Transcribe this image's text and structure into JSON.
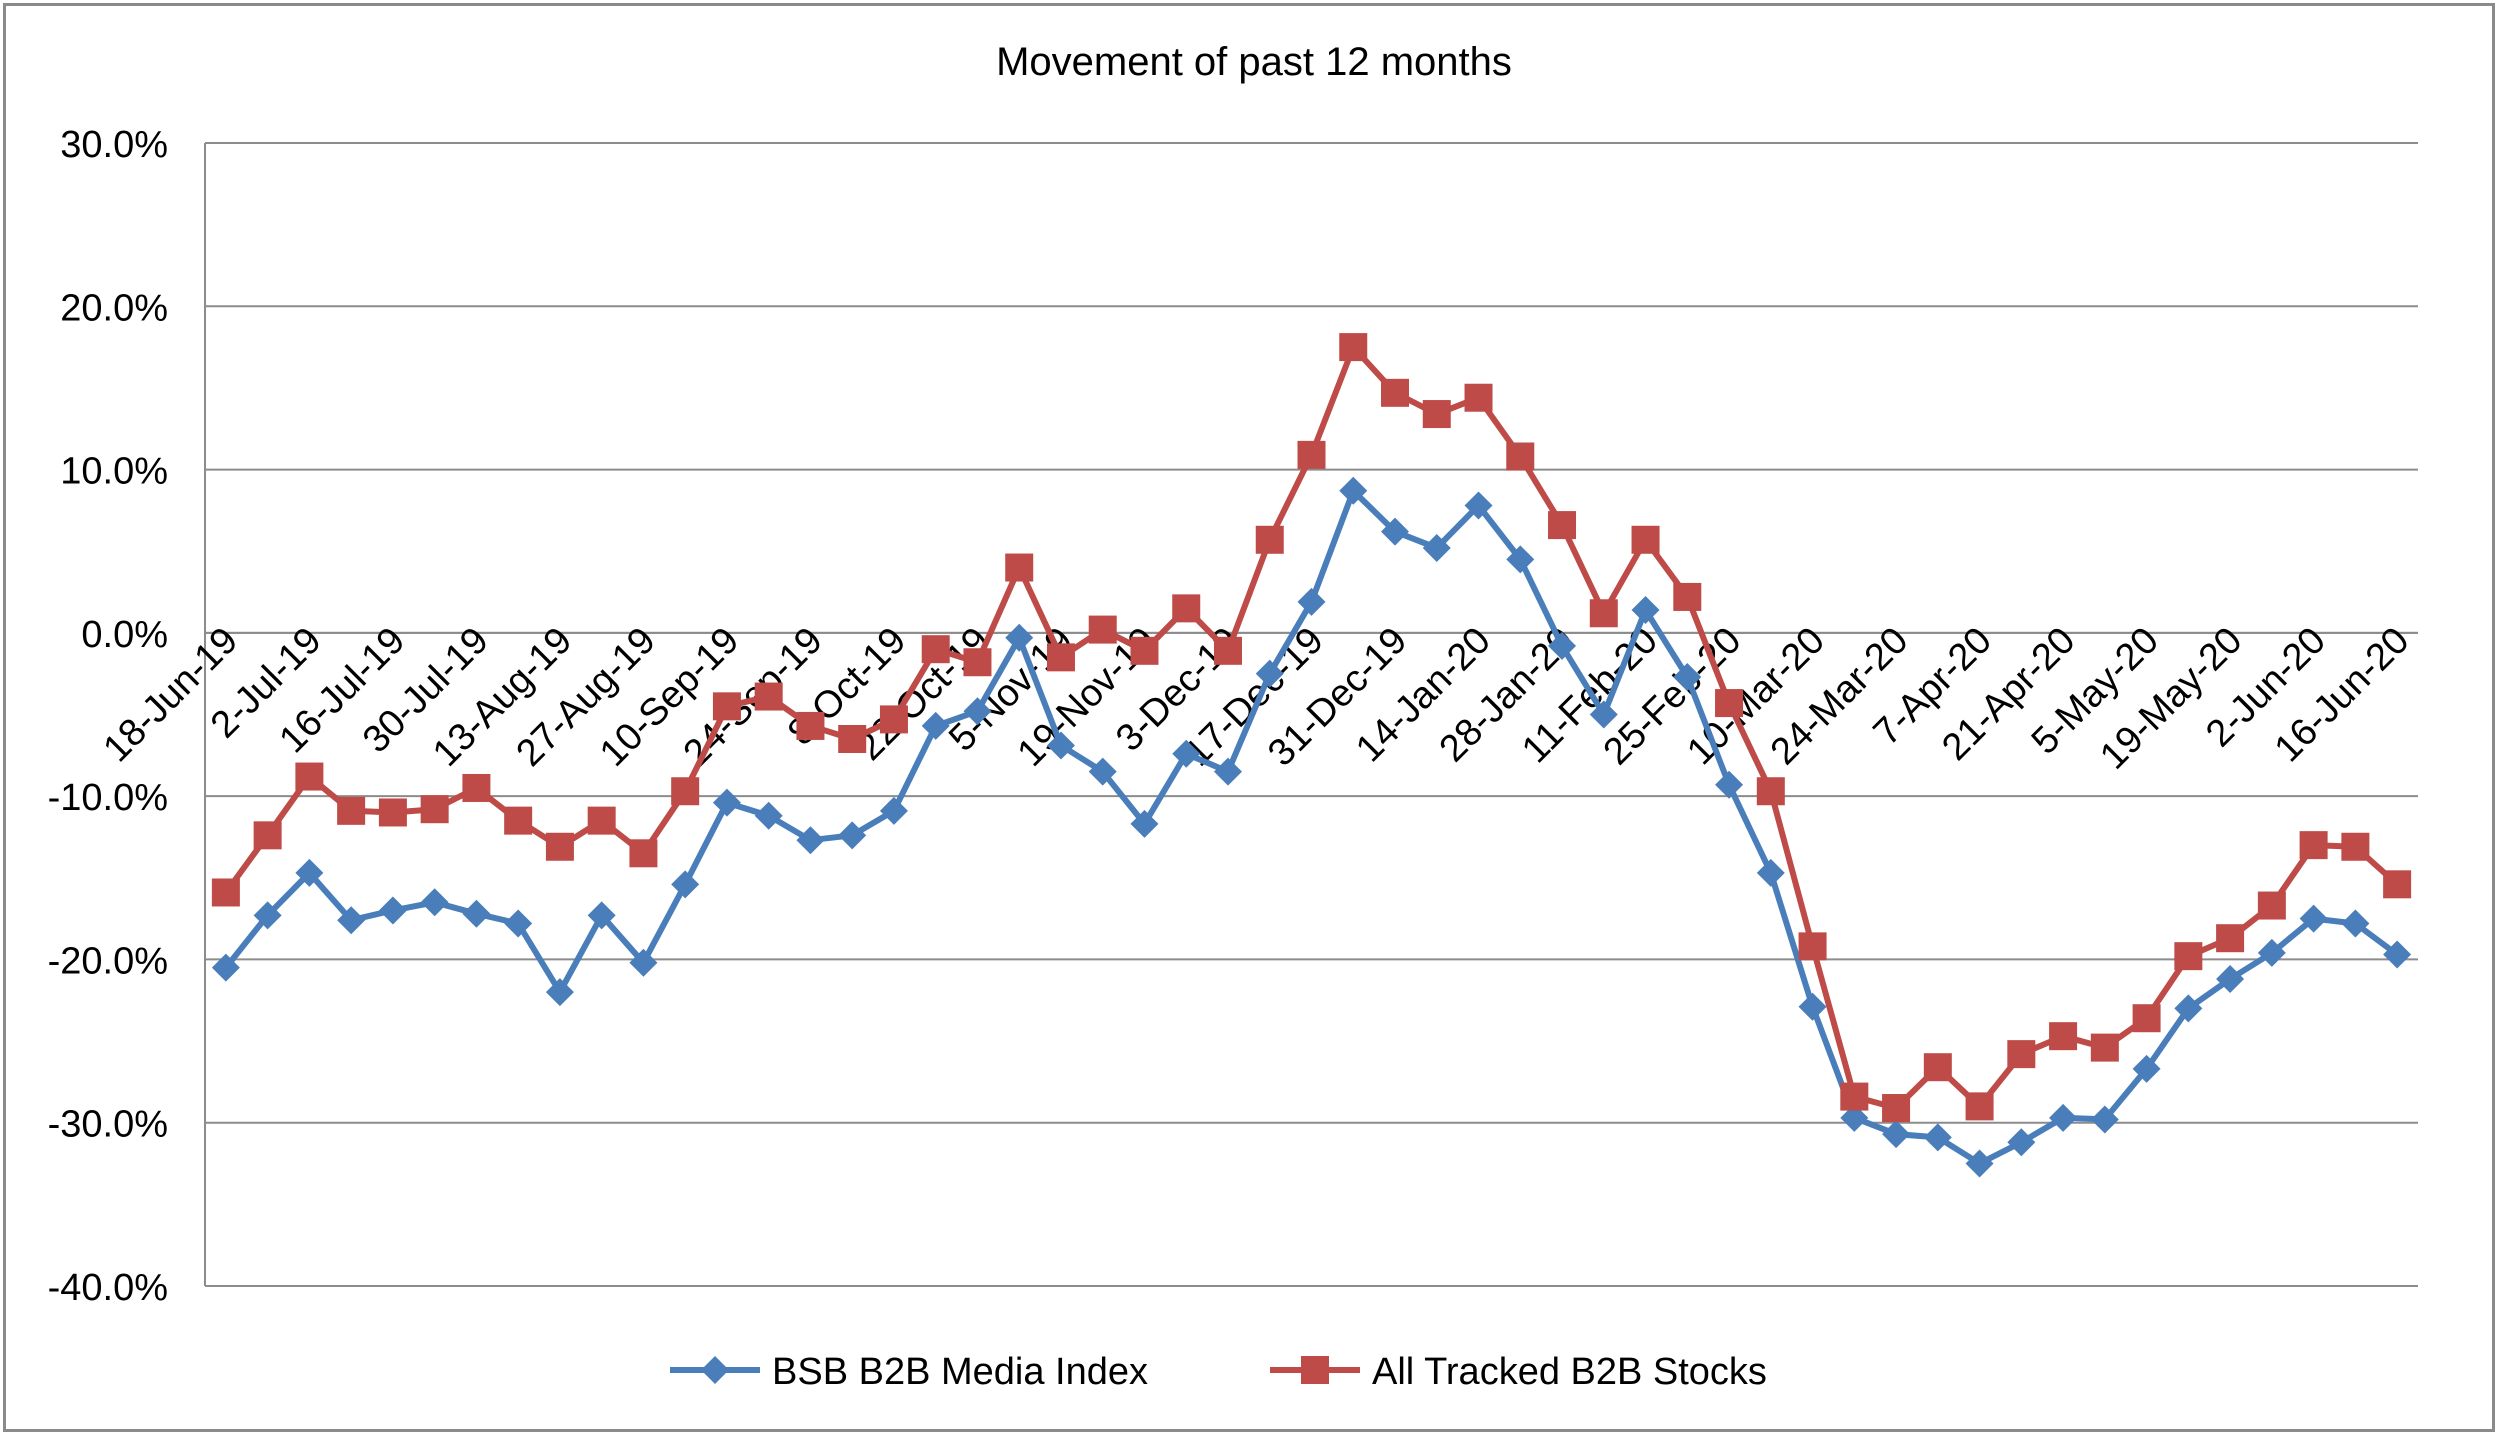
{
  "chart_data": {
    "type": "line",
    "title": "Movement of past 12 months",
    "xlabel": "",
    "ylabel": "",
    "ylim": [
      -0.4,
      0.3
    ],
    "y_ticks": [
      "30.0%",
      "20.0%",
      "10.0%",
      "0.0%",
      "-10.0%",
      "-20.0%",
      "-30.0%",
      "-40.0%"
    ],
    "x_tick_labels": [
      "18-Jun-19",
      "2-Jul-19",
      "16-Jul-19",
      "30-Jul-19",
      "13-Aug-19",
      "27-Aug-19",
      "10-Sep-19",
      "24-Sep-19",
      "8-Oct-19",
      "22-Oct-19",
      "5-Nov-19",
      "19-Nov-19",
      "3-Dec-19",
      "17-Dec-19",
      "31-Dec-19",
      "14-Jan-20",
      "28-Jan-20",
      "11-Feb-20",
      "25-Feb-20",
      "10-Mar-20",
      "24-Mar-20",
      "7-Apr-20",
      "21-Apr-20",
      "5-May-20",
      "19-May-20",
      "2-Jun-20",
      "16-Jun-20"
    ],
    "grid": true,
    "legend_position": "bottom",
    "series": [
      {
        "name": "BSB B2B Media Index",
        "color": "#4a7ebb",
        "marker": "diamond",
        "values": [
          -0.205,
          -0.173,
          -0.147,
          -0.176,
          -0.17,
          -0.165,
          -0.172,
          -0.178,
          -0.22,
          -0.173,
          -0.202,
          -0.154,
          -0.104,
          -0.112,
          -0.127,
          -0.124,
          -0.109,
          -0.057,
          -0.048,
          -0.003,
          -0.069,
          -0.085,
          -0.117,
          -0.074,
          -0.085,
          -0.025,
          0.019,
          0.087,
          0.062,
          0.052,
          0.078,
          0.045,
          -0.008,
          -0.05,
          0.014,
          -0.027,
          -0.093,
          -0.147,
          -0.229,
          -0.297,
          -0.307,
          -0.309,
          -0.325,
          -0.312,
          -0.297,
          -0.298,
          -0.267,
          -0.23,
          -0.212,
          -0.196,
          -0.175,
          -0.178,
          -0.197
        ]
      },
      {
        "name": "All Tracked B2B Stocks",
        "color": "#be4b48",
        "marker": "square",
        "values": [
          -0.159,
          -0.124,
          -0.088,
          -0.109,
          -0.11,
          -0.108,
          -0.095,
          -0.115,
          -0.131,
          -0.115,
          -0.135,
          -0.097,
          -0.045,
          -0.039,
          -0.057,
          -0.065,
          -0.053,
          -0.01,
          -0.018,
          0.04,
          -0.015,
          0.002,
          -0.011,
          0.015,
          -0.011,
          0.057,
          0.109,
          0.175,
          0.147,
          0.134,
          0.144,
          0.108,
          0.066,
          0.012,
          0.057,
          0.022,
          -0.043,
          -0.097,
          -0.192,
          -0.284,
          -0.291,
          -0.266,
          -0.29,
          -0.258,
          -0.247,
          -0.254,
          -0.236,
          -0.198,
          -0.187,
          -0.167,
          -0.13,
          -0.131,
          -0.154
        ]
      }
    ]
  }
}
